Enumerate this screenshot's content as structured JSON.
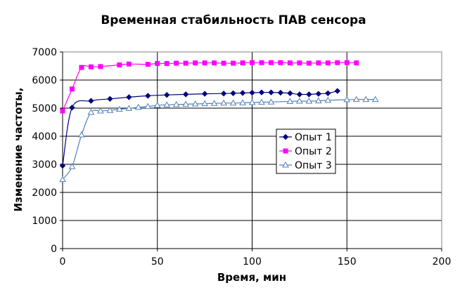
{
  "chart_data": {
    "type": "line",
    "title": "Временная стабильность ПАВ сенсора",
    "xlabel": "Время, мин",
    "ylabel": "Изменение частоты,",
    "xlim": [
      0,
      200
    ],
    "ylim": [
      0,
      7000
    ],
    "xticks": [
      0,
      50,
      100,
      150,
      200
    ],
    "yticks": [
      0,
      1000,
      2000,
      3000,
      4000,
      5000,
      6000,
      7000
    ],
    "grid": true,
    "legend_position": "right",
    "series": [
      {
        "name": "Опыт 1",
        "color": "#000080",
        "marker": "diamond",
        "x": [
          0,
          5,
          15,
          25,
          35,
          45,
          55,
          65,
          75,
          85,
          90,
          95,
          100,
          105,
          110,
          115,
          120,
          125,
          130,
          135,
          140,
          145
        ],
        "y": [
          2950,
          5020,
          5260,
          5330,
          5390,
          5440,
          5470,
          5490,
          5510,
          5520,
          5530,
          5540,
          5550,
          5560,
          5560,
          5550,
          5530,
          5490,
          5490,
          5510,
          5530,
          5610
        ]
      },
      {
        "name": "Опыт 2",
        "color": "#ff00ff",
        "marker": "square",
        "x": [
          0,
          5,
          10,
          15,
          20,
          30,
          35,
          45,
          50,
          55,
          60,
          65,
          70,
          75,
          80,
          85,
          90,
          95,
          100,
          105,
          110,
          115,
          120,
          125,
          130,
          135,
          140,
          145,
          150,
          155
        ],
        "y": [
          4900,
          5680,
          6450,
          6470,
          6480,
          6540,
          6570,
          6560,
          6590,
          6590,
          6600,
          6600,
          6610,
          6610,
          6610,
          6600,
          6600,
          6610,
          6620,
          6620,
          6620,
          6620,
          6610,
          6610,
          6600,
          6610,
          6610,
          6620,
          6620,
          6610
        ]
      },
      {
        "name": "Опыт 3",
        "color": "#4f81bd",
        "marker": "triangle",
        "x": [
          0,
          5,
          10,
          15,
          20,
          25,
          30,
          35,
          40,
          45,
          50,
          55,
          60,
          65,
          70,
          75,
          80,
          85,
          90,
          95,
          100,
          105,
          110,
          120,
          125,
          130,
          135,
          140,
          150,
          155,
          160,
          165
        ],
        "y": [
          2460,
          2920,
          4050,
          4850,
          4900,
          4920,
          4960,
          4990,
          5030,
          5060,
          5100,
          5120,
          5130,
          5140,
          5150,
          5160,
          5170,
          5180,
          5180,
          5190,
          5200,
          5210,
          5220,
          5240,
          5250,
          5250,
          5260,
          5280,
          5300,
          5310,
          5310,
          5310
        ]
      }
    ]
  }
}
